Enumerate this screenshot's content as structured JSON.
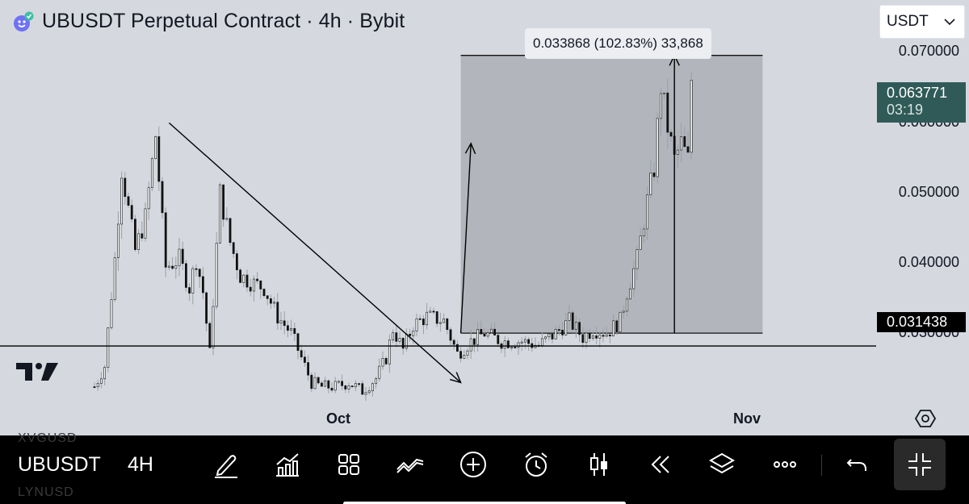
{
  "header": {
    "title": "UBUSDT Perpetual Contract · 4h · Bybit"
  },
  "currency": {
    "label": "USDT"
  },
  "measure": {
    "label": "0.033868 (102.83%) 33,868"
  },
  "price_axis": {
    "ticks": [
      "0.070000",
      "0.060000",
      "0.050000",
      "0.040000",
      "0.030000"
    ],
    "last_price": "0.063771",
    "countdown": "03:19",
    "line_price": "0.031438"
  },
  "time_axis": {
    "labels": [
      "Oct",
      "Nov"
    ]
  },
  "toolbar": {
    "symbol": "UBUSDT",
    "interval": "4H",
    "ghost_above": "XVGUSD",
    "ghost_below": "LYNUSD"
  },
  "colors": {
    "background": "#d5d8df",
    "candle": "#111111",
    "wick": "#9aa0a6",
    "range_box": "#b2b5bc",
    "last_badge": "#2f5a57",
    "toolbar": "#000000"
  },
  "chart_data": {
    "type": "candlestick",
    "timeframe": "4h",
    "y_range": [
      0.0245,
      0.0734
    ],
    "y_ticks": [
      0.07,
      0.06,
      0.05,
      0.04,
      0.03
    ],
    "x_labels": [
      "Oct",
      "Nov"
    ],
    "horizontal_line": 0.031438,
    "last_price": 0.063771,
    "price_path": [
      {
        "t": 0,
        "p": 0.0265
      },
      {
        "t": 3,
        "p": 0.029
      },
      {
        "t": 6,
        "p": 0.042
      },
      {
        "t": 8,
        "p": 0.053
      },
      {
        "t": 12,
        "p": 0.043
      },
      {
        "t": 15,
        "p": 0.047
      },
      {
        "t": 18,
        "p": 0.057
      },
      {
        "t": 21,
        "p": 0.041
      },
      {
        "t": 25,
        "p": 0.042
      },
      {
        "t": 28,
        "p": 0.0385
      },
      {
        "t": 30,
        "p": 0.042
      },
      {
        "t": 32,
        "p": 0.038
      },
      {
        "t": 34,
        "p": 0.0305
      },
      {
        "t": 37,
        "p": 0.05
      },
      {
        "t": 40,
        "p": 0.044
      },
      {
        "t": 43,
        "p": 0.04
      },
      {
        "t": 47,
        "p": 0.039
      },
      {
        "t": 50,
        "p": 0.0385
      },
      {
        "t": 54,
        "p": 0.035
      },
      {
        "t": 58,
        "p": 0.033
      },
      {
        "t": 61,
        "p": 0.03
      },
      {
        "t": 64,
        "p": 0.027
      },
      {
        "t": 67,
        "p": 0.0265
      },
      {
        "t": 71,
        "p": 0.0265
      },
      {
        "t": 75,
        "p": 0.027
      },
      {
        "t": 79,
        "p": 0.026
      },
      {
        "t": 83,
        "p": 0.0275
      },
      {
        "t": 86,
        "p": 0.03
      },
      {
        "t": 88,
        "p": 0.0335
      },
      {
        "t": 91,
        "p": 0.031
      },
      {
        "t": 94,
        "p": 0.034
      },
      {
        "t": 98,
        "p": 0.035
      },
      {
        "t": 103,
        "p": 0.0345
      },
      {
        "t": 107,
        "p": 0.0305
      },
      {
        "t": 111,
        "p": 0.032
      },
      {
        "t": 115,
        "p": 0.033
      },
      {
        "t": 120,
        "p": 0.032
      },
      {
        "t": 126,
        "p": 0.032
      },
      {
        "t": 131,
        "p": 0.0315
      },
      {
        "t": 136,
        "p": 0.033
      },
      {
        "t": 140,
        "p": 0.0345
      },
      {
        "t": 144,
        "p": 0.0325
      },
      {
        "t": 147,
        "p": 0.0335
      },
      {
        "t": 151,
        "p": 0.033
      },
      {
        "t": 155,
        "p": 0.0345
      },
      {
        "t": 157,
        "p": 0.038
      },
      {
        "t": 160,
        "p": 0.042
      },
      {
        "t": 163,
        "p": 0.049
      },
      {
        "t": 165,
        "p": 0.053
      },
      {
        "t": 167,
        "p": 0.063
      },
      {
        "t": 169,
        "p": 0.058
      },
      {
        "t": 171,
        "p": 0.054
      },
      {
        "t": 173,
        "p": 0.056
      },
      {
        "t": 175,
        "p": 0.054
      },
      {
        "t": 176,
        "p": 0.0638
      }
    ],
    "annotations": {
      "trendline": [
        {
          "t": 22,
          "p": 0.0585
        },
        {
          "t": 108,
          "p": 0.027
        }
      ],
      "projection_arrow": [
        {
          "t": 108,
          "p": 0.033
        },
        {
          "t": 111,
          "p": 0.056
        }
      ],
      "range_box": {
        "t0": 108,
        "t1": 197,
        "p0": 0.033,
        "p1": 0.06668
      },
      "measure_line": {
        "t": 171,
        "p0": 0.033,
        "p1": 0.06668
      }
    }
  }
}
